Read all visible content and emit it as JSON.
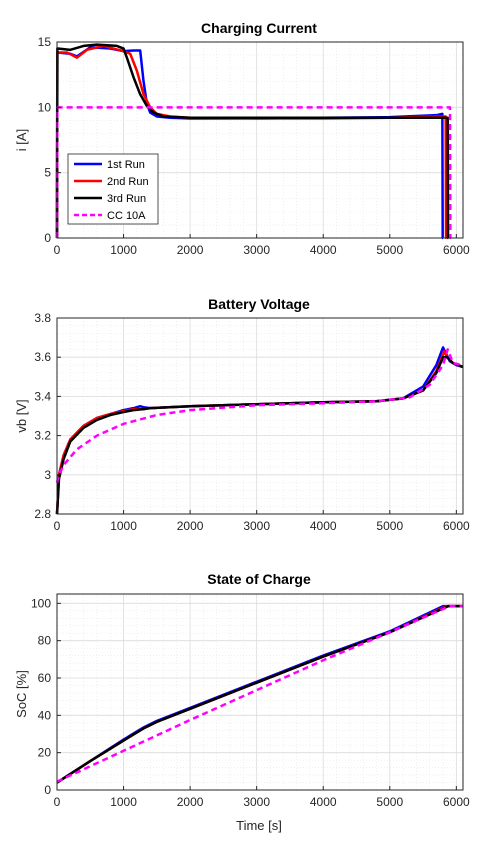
{
  "colors": {
    "run1": "#0000ff",
    "run2": "#ff0000",
    "run3": "#000000",
    "cc": "#ff00ff",
    "grid": "#dcdcdc",
    "axis": "#262626"
  },
  "chart_data": [
    {
      "type": "line",
      "title": "Charging Current",
      "xlabel": "",
      "ylabel": "i [A]",
      "xlim": [
        0,
        6100
      ],
      "ylim": [
        0,
        15
      ],
      "xticks": [
        0,
        1000,
        2000,
        3000,
        4000,
        5000,
        6000
      ],
      "yticks": [
        0,
        5,
        10,
        15
      ],
      "grid": true,
      "minor_grid": true,
      "legend": {
        "position": "bottom-left",
        "entries": [
          "1st Run",
          "2nd Run",
          "3rd Run",
          "CC 10A"
        ]
      },
      "series": [
        {
          "name": "1st Run",
          "color": "run1",
          "dash": false,
          "x": [
            0,
            5,
            10,
            200,
            300,
            500,
            800,
            1000,
            1150,
            1250,
            1300,
            1350,
            1400,
            1500,
            1700,
            2000,
            3000,
            4000,
            5000,
            5700,
            5790,
            5795,
            5800
          ],
          "y": [
            0,
            14.2,
            14.2,
            14.1,
            13.9,
            14.6,
            14.5,
            14.3,
            14.35,
            14.35,
            12.0,
            10.3,
            9.6,
            9.3,
            9.2,
            9.15,
            9.15,
            9.2,
            9.25,
            9.4,
            9.5,
            0,
            0
          ]
        },
        {
          "name": "2nd Run",
          "color": "run2",
          "dash": false,
          "x": [
            0,
            5,
            10,
            150,
            300,
            450,
            700,
            1000,
            1100,
            1200,
            1300,
            1400,
            1500,
            1700,
            2000,
            3000,
            4000,
            5000,
            5700,
            5840,
            5845,
            5850
          ],
          "y": [
            0,
            14.2,
            14.2,
            14.2,
            13.8,
            14.4,
            14.7,
            14.3,
            14.1,
            12.8,
            11.0,
            10.0,
            9.5,
            9.3,
            9.2,
            9.15,
            9.15,
            9.2,
            9.3,
            9.3,
            0,
            0
          ]
        },
        {
          "name": "3rd Run",
          "color": "run3",
          "dash": false,
          "x": [
            0,
            5,
            10,
            200,
            400,
            600,
            900,
            1000,
            1050,
            1150,
            1250,
            1350,
            1450,
            1600,
            2000,
            3000,
            4000,
            5000,
            5700,
            5870,
            5875,
            5880
          ],
          "y": [
            0,
            14.5,
            14.5,
            14.4,
            14.7,
            14.8,
            14.7,
            14.5,
            13.8,
            12.3,
            11.0,
            10.1,
            9.6,
            9.3,
            9.2,
            9.2,
            9.2,
            9.2,
            9.2,
            9.2,
            0,
            0
          ]
        },
        {
          "name": "CC 10A",
          "color": "cc",
          "dash": true,
          "x": [
            0,
            5,
            10,
            5905,
            5910,
            5915
          ],
          "y": [
            0,
            10,
            10,
            10,
            0,
            0
          ]
        }
      ]
    },
    {
      "type": "line",
      "title": "Battery Voltage",
      "xlabel": "",
      "ylabel": "vb [V]",
      "xlim": [
        0,
        6100
      ],
      "ylim": [
        2.8,
        3.8
      ],
      "xticks": [
        0,
        1000,
        2000,
        3000,
        4000,
        5000,
        6000
      ],
      "yticks": [
        2.8,
        3,
        3.2,
        3.4,
        3.6,
        3.8
      ],
      "grid": true,
      "minor_grid": true,
      "series": [
        {
          "name": "1st Run",
          "color": "run1",
          "dash": false,
          "x": [
            0,
            30,
            100,
            200,
            400,
            600,
            800,
            1000,
            1150,
            1250,
            1300,
            1400,
            2000,
            3000,
            4000,
            4800,
            5200,
            5500,
            5700,
            5800,
            5900,
            6000,
            6100
          ],
          "y": [
            2.8,
            3.0,
            3.1,
            3.18,
            3.25,
            3.29,
            3.31,
            3.33,
            3.34,
            3.35,
            3.345,
            3.34,
            3.35,
            3.36,
            3.37,
            3.375,
            3.39,
            3.45,
            3.56,
            3.65,
            3.58,
            3.56,
            3.55
          ]
        },
        {
          "name": "2nd Run",
          "color": "run2",
          "dash": false,
          "x": [
            0,
            30,
            100,
            200,
            400,
            600,
            800,
            1000,
            1150,
            1300,
            1400,
            2000,
            3000,
            4000,
            4800,
            5200,
            5500,
            5700,
            5820,
            5860,
            5950,
            6100
          ],
          "y": [
            2.8,
            3.0,
            3.1,
            3.18,
            3.25,
            3.29,
            3.31,
            3.325,
            3.335,
            3.335,
            3.34,
            3.35,
            3.36,
            3.37,
            3.375,
            3.39,
            3.43,
            3.53,
            3.63,
            3.6,
            3.57,
            3.55
          ]
        },
        {
          "name": "3rd Run",
          "color": "run3",
          "dash": false,
          "x": [
            0,
            30,
            100,
            200,
            400,
            600,
            800,
            1000,
            1150,
            1300,
            1400,
            2000,
            3000,
            4000,
            4800,
            5200,
            5500,
            5700,
            5800,
            5860,
            5950,
            6100
          ],
          "y": [
            2.8,
            2.98,
            3.08,
            3.17,
            3.24,
            3.28,
            3.305,
            3.32,
            3.33,
            3.335,
            3.34,
            3.35,
            3.36,
            3.37,
            3.375,
            3.39,
            3.43,
            3.52,
            3.6,
            3.6,
            3.57,
            3.55
          ]
        },
        {
          "name": "CC 10A",
          "color": "cc",
          "dash": true,
          "x": [
            0,
            30,
            100,
            300,
            600,
            1000,
            1500,
            2000,
            3000,
            4000,
            4800,
            5300,
            5600,
            5800,
            5870,
            5950,
            6100
          ],
          "y": [
            2.96,
            3.0,
            3.05,
            3.13,
            3.2,
            3.26,
            3.305,
            3.33,
            3.355,
            3.365,
            3.375,
            3.395,
            3.46,
            3.56,
            3.64,
            3.57,
            3.56
          ]
        }
      ]
    },
    {
      "type": "line",
      "title": "State of Charge",
      "xlabel": "Time [s]",
      "ylabel": "SoC [%]",
      "xlim": [
        0,
        6100
      ],
      "ylim": [
        0,
        105
      ],
      "xticks": [
        0,
        1000,
        2000,
        3000,
        4000,
        5000,
        6000
      ],
      "yticks": [
        0,
        20,
        40,
        60,
        80,
        100
      ],
      "grid": true,
      "minor_grid": true,
      "series": [
        {
          "name": "1st Run",
          "color": "run1",
          "dash": false,
          "x": [
            0,
            500,
            1000,
            1300,
            1500,
            2000,
            3000,
            4000,
            5000,
            5800,
            6100
          ],
          "y": [
            4,
            15.5,
            27,
            33.5,
            37,
            44,
            58,
            72,
            85,
            98.5,
            98.5
          ]
        },
        {
          "name": "2nd Run",
          "color": "run2",
          "dash": false,
          "x": [
            0,
            500,
            1000,
            1300,
            1500,
            2000,
            3000,
            4000,
            5000,
            5850,
            6100
          ],
          "y": [
            4,
            15.5,
            26.5,
            33,
            36.5,
            43.5,
            57.5,
            71.5,
            84.5,
            98.5,
            98.5
          ]
        },
        {
          "name": "3rd Run",
          "color": "run3",
          "dash": false,
          "x": [
            0,
            500,
            1000,
            1300,
            1500,
            2000,
            3000,
            4000,
            5000,
            5880,
            6100
          ],
          "y": [
            4,
            15.5,
            26.5,
            33,
            36.5,
            43.5,
            57.5,
            71.5,
            84.5,
            98.5,
            98.5
          ]
        },
        {
          "name": "CC 10A",
          "color": "cc",
          "dash": true,
          "x": [
            0,
            1000,
            2000,
            3000,
            4000,
            5000,
            5900,
            6100
          ],
          "y": [
            4.5,
            21,
            37.5,
            53.5,
            69.5,
            84.5,
            98.5,
            98.5
          ]
        }
      ]
    }
  ]
}
